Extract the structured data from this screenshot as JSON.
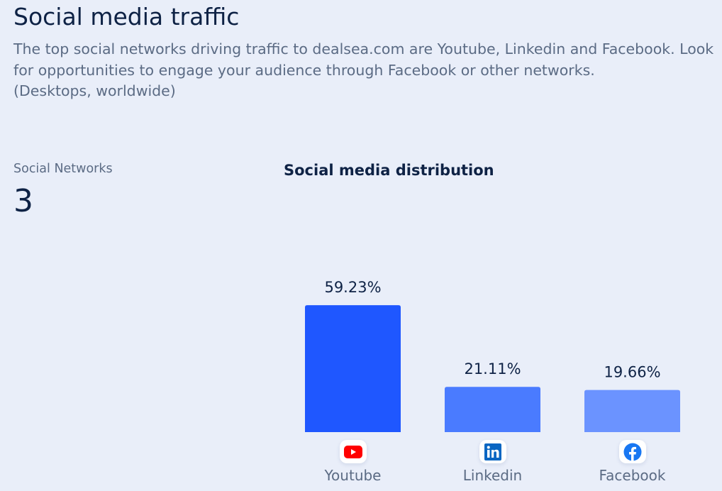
{
  "header": {
    "title": "Social media traffic",
    "description": "The top social networks driving traffic to dealsea.com are Youtube, Linkedin and Facebook. Look for opportunities to engage your audience through Facebook or other networks.",
    "scope": "(Desktops, worldwide)"
  },
  "summary": {
    "label": "Social Networks",
    "value": "3"
  },
  "chart_data": {
    "type": "bar",
    "title": "Social media distribution",
    "categories": [
      "Youtube",
      "Linkedin",
      "Facebook"
    ],
    "values": [
      59.23,
      21.11,
      19.66
    ],
    "data_labels": [
      "59.23%",
      "21.11%",
      "19.66%"
    ],
    "icons": [
      "youtube-icon",
      "linkedin-icon",
      "facebook-icon"
    ],
    "colors": [
      "#1f57ff",
      "#4a7bff",
      "#6b93ff"
    ],
    "unit": "%",
    "grid": false
  }
}
